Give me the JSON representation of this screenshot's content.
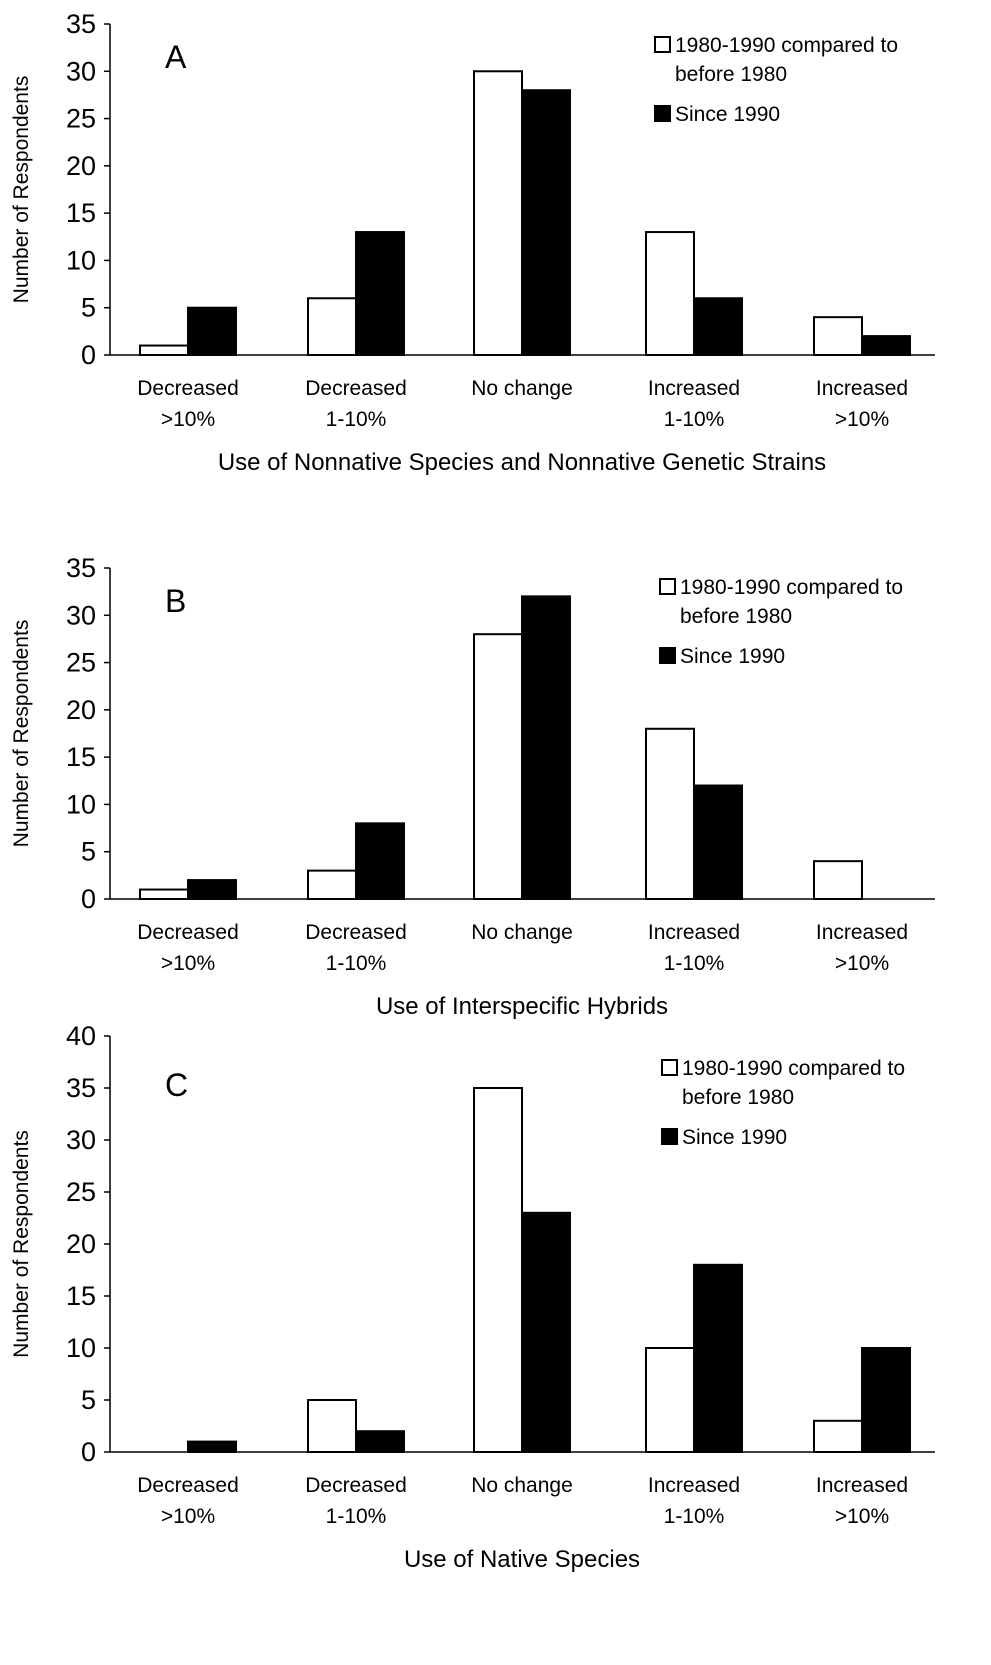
{
  "chart_data": [
    {
      "type": "bar",
      "panel_label": "A",
      "categories": [
        [
          "Decreased",
          ">10%"
        ],
        [
          "Decreased",
          "1-10%"
        ],
        [
          "No change"
        ],
        [
          "Increased",
          "1-10%"
        ],
        [
          "Increased",
          ">10%"
        ]
      ],
      "series": [
        {
          "name": [
            "1980-1990 compared to",
            "before 1980"
          ],
          "color": "#ffffff",
          "values": [
            1,
            6,
            30,
            13,
            4
          ]
        },
        {
          "name": [
            "Since 1990"
          ],
          "color": "#000000",
          "values": [
            5,
            13,
            28,
            6,
            2
          ]
        }
      ],
      "xlabel": "Use of Nonnative Species and Nonnative Genetic Strains",
      "ylabel": "Number of Respondents",
      "ylim": [
        0,
        35
      ],
      "yticks": [
        0,
        5,
        10,
        15,
        20,
        25,
        30,
        35
      ],
      "legend_position": "top-right",
      "grid": false
    },
    {
      "type": "bar",
      "panel_label": "B",
      "categories": [
        [
          "Decreased",
          ">10%"
        ],
        [
          "Decreased",
          "1-10%"
        ],
        [
          "No change"
        ],
        [
          "Increased",
          "1-10%"
        ],
        [
          "Increased",
          ">10%"
        ]
      ],
      "series": [
        {
          "name": [
            "1980-1990 compared to",
            "before 1980"
          ],
          "color": "#ffffff",
          "values": [
            1,
            3,
            28,
            18,
            4
          ]
        },
        {
          "name": [
            "Since 1990"
          ],
          "color": "#000000",
          "values": [
            2,
            8,
            32,
            12,
            0
          ]
        }
      ],
      "xlabel": "Use of Interspecific Hybrids",
      "ylabel": "Number of Respondents",
      "ylim": [
        0,
        35
      ],
      "yticks": [
        0,
        5,
        10,
        15,
        20,
        25,
        30,
        35
      ],
      "legend_position": "top-right",
      "grid": false
    },
    {
      "type": "bar",
      "panel_label": "C",
      "categories": [
        [
          "Decreased",
          ">10%"
        ],
        [
          "Decreased",
          "1-10%"
        ],
        [
          "No change"
        ],
        [
          "Increased",
          "1-10%"
        ],
        [
          "Increased",
          ">10%"
        ]
      ],
      "series": [
        {
          "name": [
            "1980-1990 compared to",
            "before 1980"
          ],
          "color": "#ffffff",
          "values": [
            0,
            5,
            35,
            10,
            3
          ]
        },
        {
          "name": [
            "Since 1990"
          ],
          "color": "#000000",
          "values": [
            1,
            2,
            23,
            18,
            10
          ]
        }
      ],
      "xlabel": "Use of Native Species",
      "ylabel": "Number of Respondents",
      "ylim": [
        0,
        40
      ],
      "yticks": [
        0,
        5,
        10,
        15,
        20,
        25,
        30,
        35,
        40
      ],
      "legend_position": "top-right",
      "grid": false
    }
  ]
}
